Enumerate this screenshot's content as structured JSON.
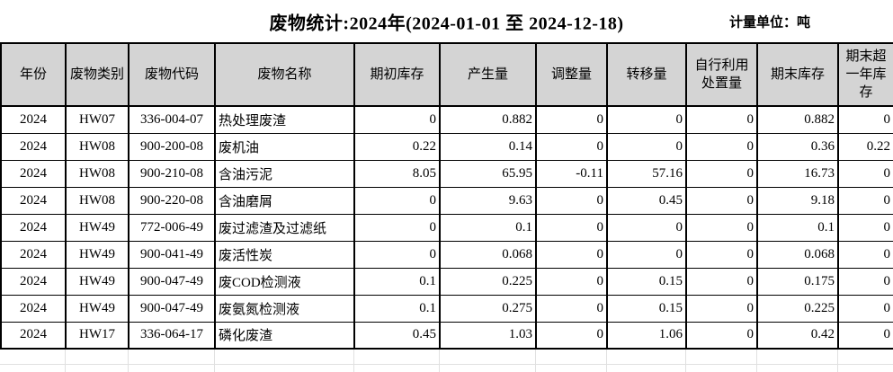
{
  "title": "废物统计:2024年(2024-01-01 至 2024-12-18)",
  "unit_label": "计量单位：吨",
  "colors": {
    "header_background": "#d4d4d4",
    "table_border": "#000000",
    "faint_gridline": "#e0e0e0",
    "text": "#000000"
  },
  "table": {
    "headers": [
      "年份",
      "废物类别",
      "废物代码",
      "废物名称",
      "期初库存",
      "产生量",
      "调整量",
      "转移量",
      "自行利用处置量",
      "期末库存",
      "期末超一年库存"
    ],
    "rows": [
      [
        "2024",
        "HW07",
        "336-004-07",
        "热处理废渣",
        "0",
        "0.882",
        "0",
        "0",
        "0",
        "0.882",
        "0"
      ],
      [
        "2024",
        "HW08",
        "900-200-08",
        "废机油",
        "0.22",
        "0.14",
        "0",
        "0",
        "0",
        "0.36",
        "0.22"
      ],
      [
        "2024",
        "HW08",
        "900-210-08",
        "含油污泥",
        "8.05",
        "65.95",
        "-0.11",
        "57.16",
        "0",
        "16.73",
        "0"
      ],
      [
        "2024",
        "HW08",
        "900-220-08",
        "含油磨屑",
        "0",
        "9.63",
        "0",
        "0.45",
        "0",
        "9.18",
        "0"
      ],
      [
        "2024",
        "HW49",
        "772-006-49",
        "废过滤渣及过滤纸",
        "0",
        "0.1",
        "0",
        "0",
        "0",
        "0.1",
        "0"
      ],
      [
        "2024",
        "HW49",
        "900-041-49",
        "废活性炭",
        "0",
        "0.068",
        "0",
        "0",
        "0",
        "0.068",
        "0"
      ],
      [
        "2024",
        "HW49",
        "900-047-49",
        "废COD检测液",
        "0.1",
        "0.225",
        "0",
        "0.15",
        "0",
        "0.175",
        "0"
      ],
      [
        "2024",
        "HW49",
        "900-047-49",
        "废氨氮检测液",
        "0.1",
        "0.275",
        "0",
        "0.15",
        "0",
        "0.225",
        "0"
      ],
      [
        "2024",
        "HW17",
        "336-064-17",
        "磷化废渣",
        "0.45",
        "1.03",
        "0",
        "1.06",
        "0",
        "0.42",
        "0"
      ]
    ]
  }
}
